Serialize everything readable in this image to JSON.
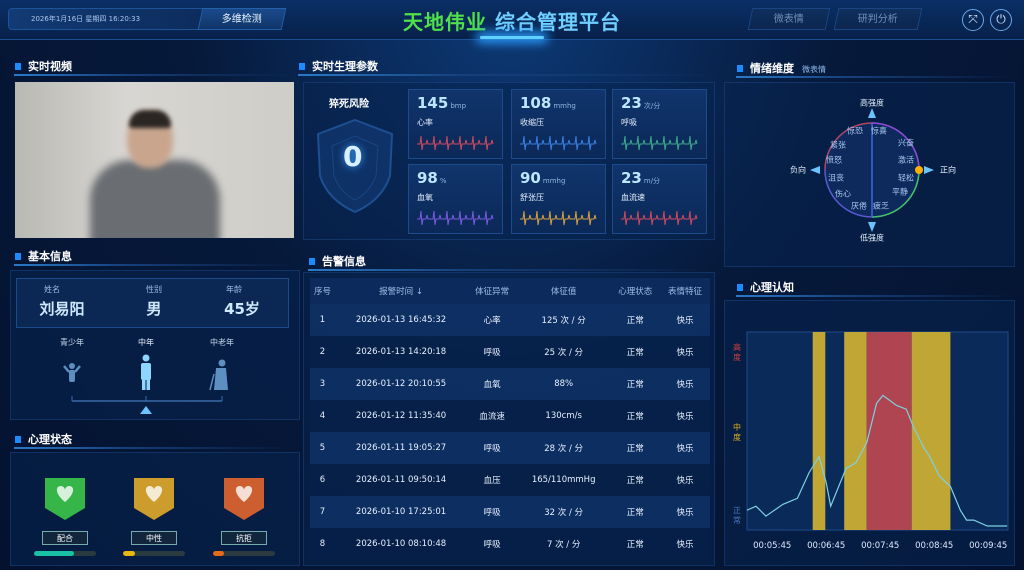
{
  "header": {
    "datetime": "2026年1月16日 星期四 16:20:33",
    "mode_button": "多维检测",
    "title_brand": "天地伟业",
    "title_rest": "综合管理平台",
    "nav": [
      "微表情",
      "研判分析"
    ],
    "icons": [
      "fullscreen-icon",
      "power-icon"
    ]
  },
  "video": {
    "title": "实时视频"
  },
  "basic": {
    "title": "基本信息",
    "fields": [
      {
        "label": "姓名",
        "value": "刘易阳"
      },
      {
        "label": "性别",
        "value": "男"
      },
      {
        "label": "年龄",
        "value": "45岁"
      }
    ],
    "age_groups": [
      "青少年",
      "中年",
      "中老年"
    ],
    "selected_age_group": "中年"
  },
  "psych": {
    "title": "心理状态",
    "states": [
      {
        "label": "配合",
        "color": "#3fd04a",
        "bar_color": "#19c2a6",
        "level": 0.65
      },
      {
        "label": "中性",
        "color": "#f0b429",
        "bar_color": "#e8b810",
        "level": 0.2
      },
      {
        "label": "抗拒",
        "color": "#f06a2c",
        "bar_color": "#e86a18",
        "level": 0.18
      }
    ]
  },
  "vitals": {
    "title": "实时生理参数",
    "risk_label": "猝死风险",
    "risk_value": "0",
    "cards": [
      {
        "value": "145",
        "unit": "bmp",
        "label": "心率",
        "color": "#d04860"
      },
      {
        "value": "108",
        "unit": "mmhg",
        "label": "收缩压",
        "color": "#3b7fe0"
      },
      {
        "value": "23",
        "unit": "次/分",
        "label": "呼吸",
        "color": "#3fa890"
      },
      {
        "value": "98",
        "unit": "%",
        "label": "血氧",
        "color": "#7a5ae0"
      },
      {
        "value": "90",
        "unit": "mmhg",
        "label": "舒张压",
        "color": "#d4a040"
      },
      {
        "value": "23",
        "unit": "m/分",
        "label": "血流速",
        "color": "#d04860"
      }
    ]
  },
  "alarm": {
    "title": "告警信息",
    "columns": [
      "序号",
      "报警时间 ↓",
      "体征异常",
      "体征值",
      "心理状态",
      "表情特征"
    ],
    "rows": [
      [
        "1",
        "2026-01-13 16:45:32",
        "心率",
        "125 次 / 分",
        "正常",
        "快乐"
      ],
      [
        "2",
        "2026-01-13 14:20:18",
        "呼吸",
        "25 次 / 分",
        "正常",
        "快乐"
      ],
      [
        "3",
        "2026-01-12 20:10:55",
        "血氧",
        "88%",
        "正常",
        "快乐"
      ],
      [
        "4",
        "2026-01-12 11:35:40",
        "血流速",
        "130cm/s",
        "正常",
        "快乐"
      ],
      [
        "5",
        "2026-01-11 19:05:27",
        "呼吸",
        "28 次 / 分",
        "正常",
        "快乐"
      ],
      [
        "6",
        "2026-01-11 09:50:14",
        "血压",
        "165/110mmHg",
        "正常",
        "快乐"
      ],
      [
        "7",
        "2026-01-10 17:25:01",
        "呼吸",
        "32 次 / 分",
        "正常",
        "快乐"
      ],
      [
        "8",
        "2026-01-10 08:10:48",
        "呼吸",
        "7 次 / 分",
        "正常",
        "快乐"
      ]
    ]
  },
  "emotion": {
    "title": "情绪维度",
    "subtitle": "微表情",
    "axes": {
      "top": "高强度",
      "bottom": "低强度",
      "left": "负向",
      "right": "正向"
    },
    "labels": [
      "惊恐",
      "惊喜",
      "紧张",
      "兴奋",
      "愤怒",
      "激活",
      "沮丧",
      "轻松",
      "伤心",
      "平静",
      "厌倦",
      "疲乏"
    ],
    "current": {
      "valence": 1.0,
      "arousal": 0.0
    },
    "marker_color": "#ffb000"
  },
  "chart_data": {
    "type": "line",
    "title": "心理认知",
    "ylabels": [
      {
        "text": "高度",
        "color": "#d04040"
      },
      {
        "text": "中度",
        "color": "#e0b020"
      },
      {
        "text": "正常",
        "color": "#4a78c0"
      }
    ],
    "xticks": [
      "00:05:45",
      "00:06:45",
      "00:07:45",
      "00:08:45",
      "00:09:45"
    ],
    "xlim": [
      "00:05:17",
      "00:10:07"
    ],
    "ylim": [
      0,
      1
    ],
    "bands": [
      {
        "start": "00:06:30",
        "end": "00:06:44",
        "level": "中度",
        "color": "#d4b430"
      },
      {
        "start": "00:07:05",
        "end": "00:07:30",
        "level": "中度",
        "color": "#d4b430"
      },
      {
        "start": "00:07:30",
        "end": "00:08:20",
        "level": "高度",
        "color": "#c04850"
      },
      {
        "start": "00:08:20",
        "end": "00:09:03",
        "level": "中度",
        "color": "#d4b430"
      }
    ],
    "x": [
      "00:05:17",
      "00:05:27",
      "00:05:38",
      "00:05:57",
      "00:06:13",
      "00:06:26",
      "00:06:37",
      "00:06:45",
      "00:06:50",
      "00:06:58",
      "00:07:07",
      "00:07:18",
      "00:07:30",
      "00:07:41",
      "00:07:48",
      "00:08:03",
      "00:08:14",
      "00:08:22",
      "00:08:33",
      "00:08:40",
      "00:08:51",
      "00:09:03",
      "00:09:14",
      "00:09:21",
      "00:09:29",
      "00:09:44",
      "00:10:06"
    ],
    "y": [
      0.1,
      0.12,
      0.07,
      0.13,
      0.16,
      0.29,
      0.37,
      0.24,
      0.12,
      0.21,
      0.31,
      0.34,
      0.44,
      0.64,
      0.68,
      0.63,
      0.61,
      0.52,
      0.42,
      0.37,
      0.27,
      0.22,
      0.1,
      0.05,
      0.05,
      0.02,
      0.02
    ],
    "grid": false
  }
}
